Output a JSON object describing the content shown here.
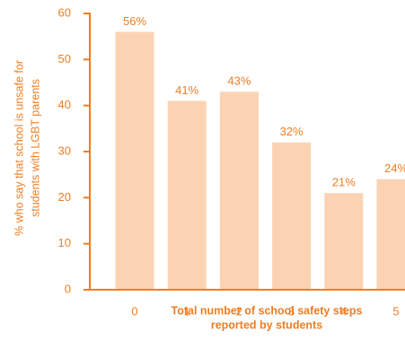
{
  "chart_data": {
    "type": "bar",
    "y_label": [
      "% who say that school is unsafe for",
      "students with LGBT parents"
    ],
    "x_label": [
      "Total number of school safety steps",
      "reported by students"
    ],
    "categories": [
      "0",
      "1",
      "2",
      "3",
      "4",
      "5"
    ],
    "values": [
      56,
      41,
      43,
      32,
      21,
      24
    ],
    "value_labels": [
      "56%",
      "41%",
      "43%",
      "32%",
      "21%",
      "24%"
    ],
    "color": "#fbd3b3",
    "axis_color": "#ef7d22",
    "ylim": [
      0,
      60
    ],
    "yticks": [
      0,
      10,
      20,
      30,
      40,
      50,
      60
    ],
    "grid": false
  }
}
